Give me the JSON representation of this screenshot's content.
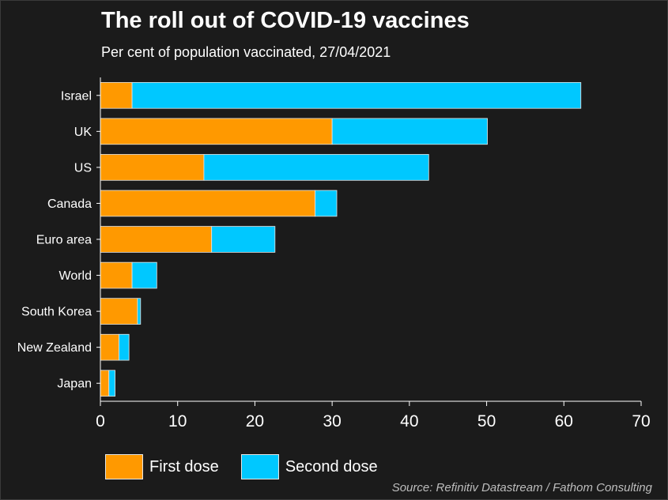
{
  "chart_data": {
    "type": "bar",
    "orientation": "horizontal",
    "stacked": true,
    "title": "The roll out of COVID-19 vaccines",
    "subtitle": "Per cent of population vaccinated, 27/04/2021",
    "categories": [
      "Israel",
      "UK",
      "US",
      "Canada",
      "Euro area",
      "World",
      "South Korea",
      "New Zealand",
      "Japan"
    ],
    "series": [
      {
        "name": "First dose",
        "color": "#ff9900",
        "values": [
          4.1,
          30,
          13.4,
          27.8,
          14.4,
          4.1,
          4.8,
          2.4,
          1.1
        ]
      },
      {
        "name": "Second dose",
        "color": "#00c8ff",
        "values": [
          58.1,
          20.1,
          29.1,
          2.8,
          8.2,
          3.2,
          0.4,
          1.3,
          0.8
        ]
      }
    ],
    "xlim": [
      0,
      70
    ],
    "xticks": [
      0,
      10,
      20,
      30,
      40,
      50,
      60,
      70
    ],
    "grid": false,
    "legend_position": "bottom-left",
    "source": "Source: Refinitiv Datastream / Fathom Consulting"
  }
}
